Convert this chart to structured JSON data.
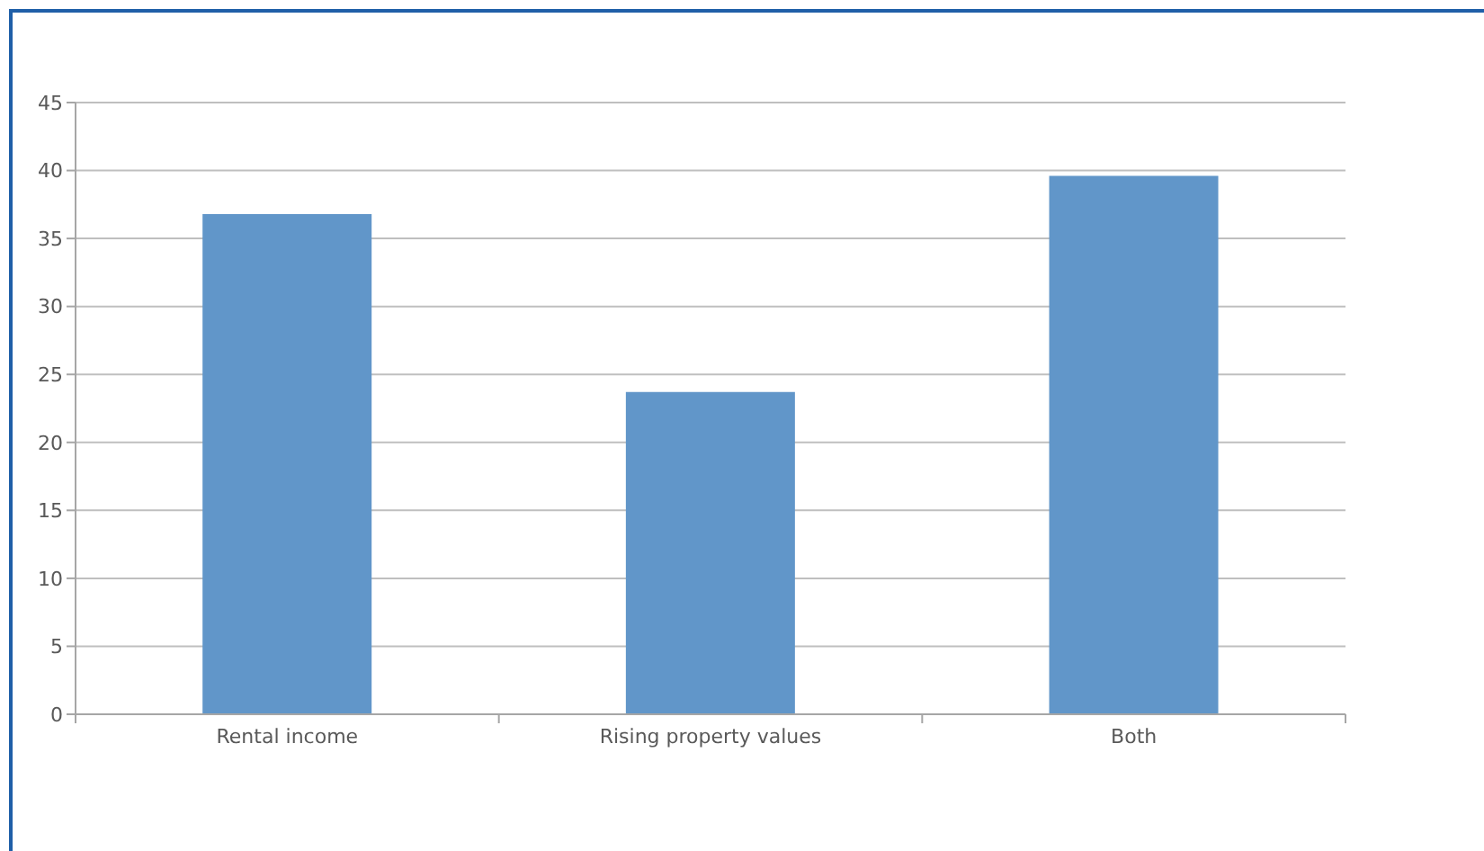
{
  "chart_data": {
    "type": "bar",
    "categories": [
      "Rental income",
      "Rising property values",
      "Both"
    ],
    "values": [
      36.8,
      23.7,
      39.6
    ],
    "color": "#6196c9",
    "ylim": [
      0,
      45
    ],
    "yticks": [
      0,
      5,
      10,
      15,
      20,
      25,
      30,
      35,
      40,
      45
    ],
    "grid": "y"
  }
}
